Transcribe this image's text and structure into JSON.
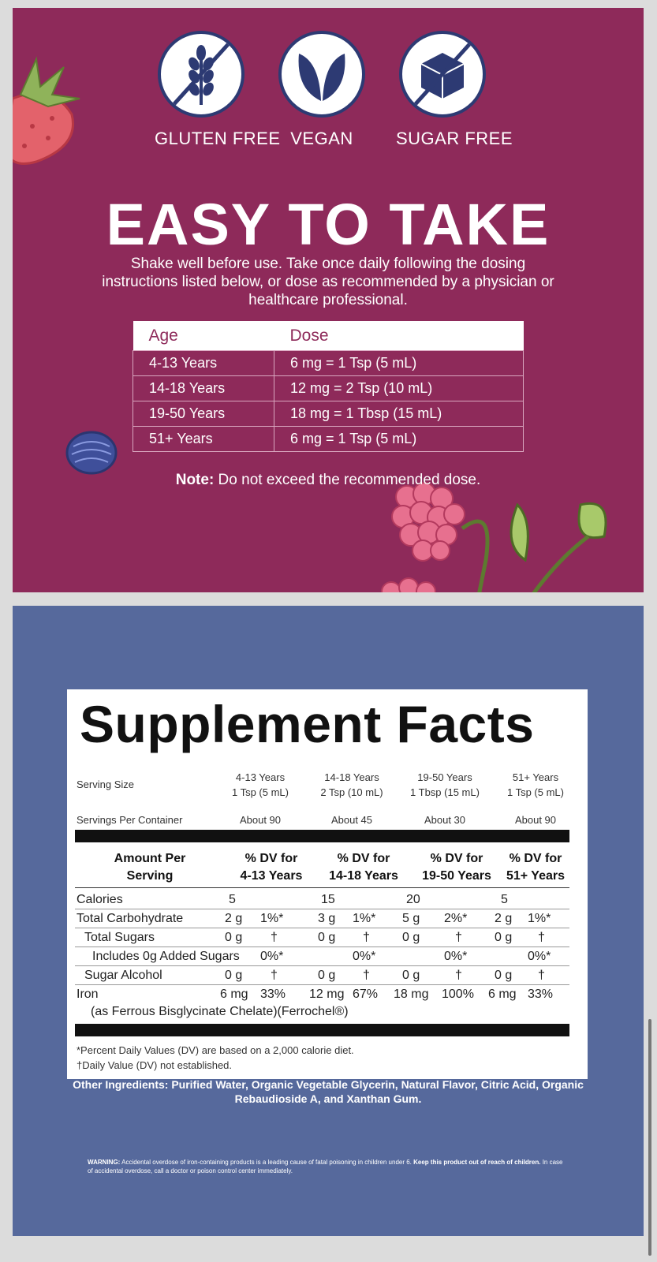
{
  "badges": [
    {
      "label": "GLUTEN FREE",
      "icon": "wheat-crossed-icon"
    },
    {
      "label": "VEGAN",
      "icon": "leaf-icon"
    },
    {
      "label": "SUGAR FREE",
      "icon": "sugar-cube-crossed-icon"
    }
  ],
  "headline": "EASY TO TAKE",
  "instructions": "Shake well before use. Take once daily following the dosing instructions listed below, or dose as recommended by a physician or healthcare professional.",
  "dose_table": {
    "headers": [
      "Age",
      "Dose"
    ],
    "rows": [
      [
        "4-13 Years",
        "6 mg = 1 Tsp (5 mL)"
      ],
      [
        "14-18 Years",
        "12 mg = 2 Tsp (10 mL)"
      ],
      [
        "19-50 Years",
        "18 mg = 1 Tbsp (15 mL)"
      ],
      [
        "51+ Years",
        "6 mg = 1 Tsp (5 mL)"
      ]
    ]
  },
  "note": {
    "label": "Note:",
    "text": " Do not exceed the recommended dose."
  },
  "facts": {
    "title": "Supplement Facts",
    "serving_size_label": "Serving Size",
    "groups": [
      {
        "age": "4-13 Years",
        "serving": "1 Tsp (5 mL)",
        "servings": "About 90",
        "dv_line1": "% DV for",
        "dv_line2": "4-13 Years"
      },
      {
        "age": "14-18 Years",
        "serving": "2 Tsp (10 mL)",
        "servings": "About 45",
        "dv_line1": "% DV for",
        "dv_line2": "14-18 Years"
      },
      {
        "age": "19-50 Years",
        "serving": "1 Tbsp (15 mL)",
        "servings": "About 30",
        "dv_line1": "% DV for",
        "dv_line2": "19-50 Years"
      },
      {
        "age": "51+ Years",
        "serving": "1 Tsp (5 mL)",
        "servings": "About 90",
        "dv_line1": "% DV for",
        "dv_line2": "51+ Years"
      }
    ],
    "servings_per_container_label": "Servings Per Container",
    "amount_per_serving_line1": "Amount Per",
    "amount_per_serving_line2": "Serving",
    "nutrients": [
      {
        "name": "Calories",
        "values": [
          [
            "5",
            ""
          ],
          [
            "15",
            ""
          ],
          [
            "20",
            ""
          ],
          [
            "5",
            ""
          ]
        ]
      },
      {
        "name": "Total Carbohydrate",
        "values": [
          [
            "2 g",
            "1%*"
          ],
          [
            "3 g",
            "1%*"
          ],
          [
            "5 g",
            "2%*"
          ],
          [
            "2 g",
            "1%*"
          ]
        ]
      },
      {
        "name": "Total Sugars",
        "values": [
          [
            "0 g",
            "†"
          ],
          [
            "0 g",
            "†"
          ],
          [
            "0 g",
            "†"
          ],
          [
            "0 g",
            "†"
          ]
        ]
      },
      {
        "name": "Includes 0g Added Sugars",
        "values": [
          [
            "",
            "0%*"
          ],
          [
            "",
            "0%*"
          ],
          [
            "",
            "0%*"
          ],
          [
            "",
            "0%*"
          ]
        ]
      },
      {
        "name": "Sugar Alcohol",
        "values": [
          [
            "0 g",
            "†"
          ],
          [
            "0 g",
            "†"
          ],
          [
            "0 g",
            "†"
          ],
          [
            "0 g",
            "†"
          ]
        ]
      },
      {
        "name": "Iron",
        "values": [
          [
            "6 mg",
            "33%"
          ],
          [
            "12 mg",
            "67%"
          ],
          [
            "18 mg",
            "100%"
          ],
          [
            "6 mg",
            "33%"
          ]
        ]
      }
    ],
    "iron_source": "(as Ferrous Bisglycinate Chelate)(Ferrochel®)",
    "footnote_1": "*Percent Daily Values (DV) are based on a 2,000 calorie diet.",
    "footnote_2": "†Daily Value (DV) not established."
  },
  "other_ingredients": "Other Ingredients: Purified Water, Organic Vegetable Glycerin, Natural Flavor, Citric Acid, Organic Rebaudioside A, and Xanthan Gum.",
  "warning": {
    "label": "WARNING:",
    "text1": " Accidental overdose of iron-containing products is a leading cause of fatal poisoning in children under 6. ",
    "bold": "Keep this product out of reach of children.",
    "text2": " In case of accidental overdose, call a doctor or poison control center immediately."
  },
  "colors": {
    "top_panel": "#8e2a5a",
    "bottom_panel": "#56699c",
    "icon_navy": "#2d3a73"
  }
}
